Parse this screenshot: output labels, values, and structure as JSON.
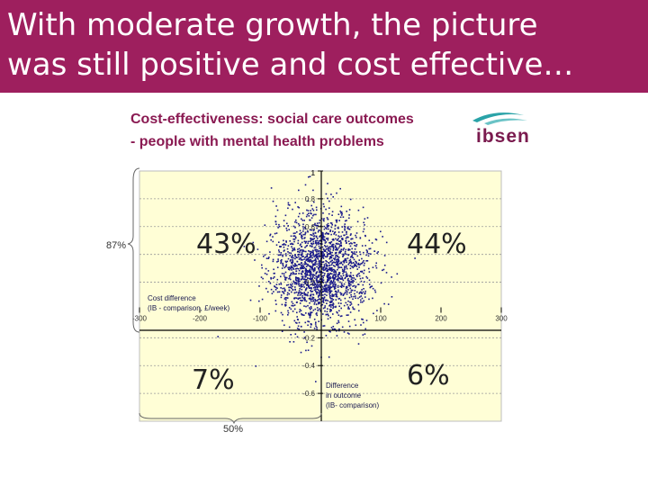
{
  "slide": {
    "title_line1": "With moderate growth, the picture",
    "title_line2": "was still positive and cost effective…",
    "banner_color": "#9e1f5e"
  },
  "logo": {
    "text": "ibsen",
    "icon": "swoosh-logo-icon"
  },
  "chart_data": {
    "type": "scatter",
    "title_line1": "Cost-effectiveness: social care outcomes",
    "title_line2": "- people with mental health problems",
    "xlabel_line1": "Cost difference",
    "xlabel_line2": "(IB - comparison, £/week)",
    "ylabel_line1": "Difference",
    "ylabel_line2": "in outcome",
    "ylabel_line3": "(IB- comparison)",
    "xlim": [
      -300,
      300
    ],
    "ylim": [
      -0.8,
      1
    ],
    "x_ticks": [
      "-300",
      "-200",
      "-100",
      "100",
      "200",
      "300"
    ],
    "y_ticks": [
      "1",
      "0.8",
      "0.6",
      "0.2",
      "-0.2",
      "-0.4",
      "-0.6"
    ],
    "y_tick_values": [
      1,
      0.8,
      0.6,
      0.2,
      -0.2,
      -0.4,
      -0.6
    ],
    "y_gridlines": [
      0.8,
      0.6,
      0.4,
      0.2,
      -0.2,
      -0.4,
      -0.6
    ],
    "quadrant_labels": {
      "top_left": "43%",
      "top_right": "44%",
      "bottom_left": "7%",
      "bottom_right": "6%"
    },
    "brackets": {
      "left": "87%",
      "bottom": "50%"
    },
    "cloud": {
      "n": 2000,
      "center_x": 0,
      "center_y": 0.3,
      "sd_x": 40,
      "sd_y": 0.2,
      "seed": 7
    },
    "colors": {
      "plot_bg": "#fffed6",
      "points": "#1a1a8c",
      "title": "#8a1a52"
    }
  }
}
